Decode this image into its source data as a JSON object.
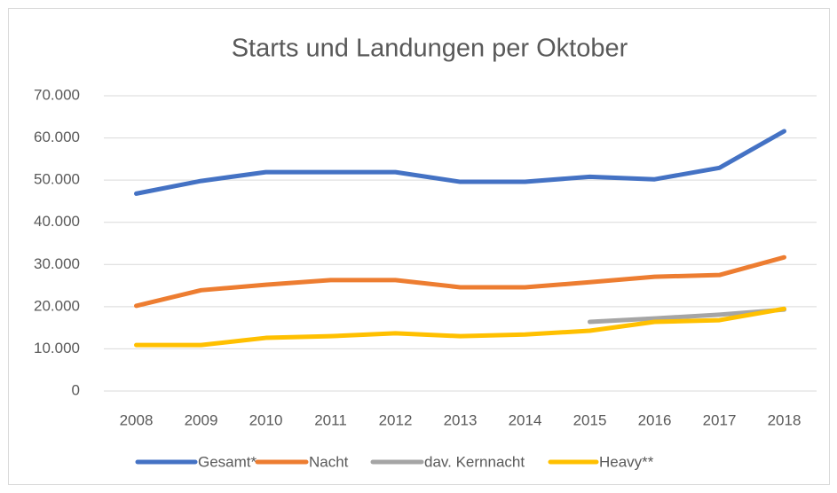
{
  "chart_data": {
    "type": "line",
    "title": "Starts und Landungen per Oktober",
    "categories": [
      "2008",
      "2009",
      "2010",
      "2011",
      "2012",
      "2013",
      "2014",
      "2015",
      "2016",
      "2017",
      "2018"
    ],
    "series": [
      {
        "name": "Gesamt*",
        "color": "#4472c4",
        "values": [
          46800,
          49800,
          51900,
          51900,
          51900,
          49600,
          49600,
          50800,
          50200,
          52900,
          61600
        ]
      },
      {
        "name": "Nacht",
        "color": "#ed7d31",
        "values": [
          20200,
          23900,
          25200,
          26300,
          26300,
          24600,
          24600,
          25800,
          27100,
          27500,
          31700
        ]
      },
      {
        "name": "dav. Kernnacht",
        "color": "#a5a5a5",
        "values": [
          null,
          null,
          null,
          null,
          null,
          null,
          null,
          16400,
          17200,
          18100,
          19300
        ]
      },
      {
        "name": "Heavy**",
        "color": "#ffc000",
        "values": [
          10900,
          10900,
          12600,
          13000,
          13700,
          13000,
          13400,
          14300,
          16400,
          16800,
          19500
        ]
      }
    ],
    "ylim": [
      0,
      70000
    ],
    "yticks": [
      0,
      {
        "value": 10000,
        "label": "10.000"
      },
      {
        "value": 20000,
        "label": "20.000"
      },
      {
        "value": 30000,
        "label": "30.000"
      },
      {
        "value": 40000,
        "label": "40.000"
      },
      {
        "value": 50000,
        "label": "50.000"
      },
      {
        "value": 60000,
        "label": "60.000"
      },
      {
        "value": 70000,
        "label": "70.000"
      }
    ],
    "grid": true,
    "legend": "bottom"
  }
}
